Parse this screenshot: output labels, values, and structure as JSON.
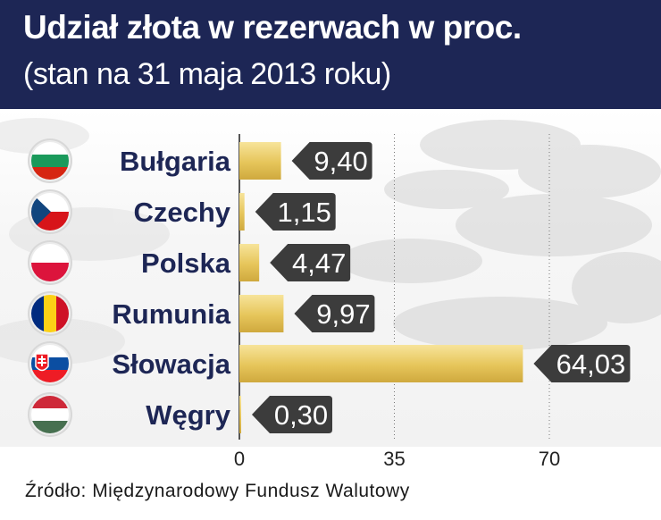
{
  "header": {
    "title": "Udział złota w rezerwach w proc.",
    "subtitle": "(stan na 31 maja 2013 roku)"
  },
  "source": "Źródło: Międzynarodowy Fundusz Walutowy",
  "colors": {
    "header_bg": "#1d2655",
    "bar_gold": "#e6c55a",
    "label_box": "#3c3c3c",
    "country_text": "#1d2655"
  },
  "chart_data": {
    "type": "bar",
    "orientation": "horizontal",
    "title": "Udział złota w rezerwach w proc.",
    "subtitle": "(stan na 31 maja 2013 roku)",
    "categories": [
      "Bułgaria",
      "Czechy",
      "Polska",
      "Rumunia",
      "Słowacja",
      "Węgry"
    ],
    "values": [
      9.4,
      1.15,
      4.47,
      9.97,
      64.03,
      0.3
    ],
    "value_labels": [
      "9,40",
      "1,15",
      "4,47",
      "9,97",
      "64,03",
      "0,30"
    ],
    "flags": [
      {
        "name": "bulgaria-flag-icon",
        "stripes": [
          "#ffffff",
          "#1a9a5b",
          "#d62612"
        ],
        "dir": "h"
      },
      {
        "name": "czech-flag-icon",
        "stripes": [
          "#ffffff",
          "#d7141a"
        ],
        "dir": "h",
        "triangle": "#11457e"
      },
      {
        "name": "poland-flag-icon",
        "stripes": [
          "#ffffff",
          "#dc143c"
        ],
        "dir": "h"
      },
      {
        "name": "romania-flag-icon",
        "stripes": [
          "#002b7f",
          "#fcd116",
          "#ce1126"
        ],
        "dir": "v"
      },
      {
        "name": "slovakia-flag-icon",
        "stripes": [
          "#ffffff",
          "#0b4ea2",
          "#ee1c25"
        ],
        "dir": "h",
        "emblem": true
      },
      {
        "name": "hungary-flag-icon",
        "stripes": [
          "#ce2939",
          "#ffffff",
          "#477050"
        ],
        "dir": "h"
      }
    ],
    "xlim": [
      0,
      70
    ],
    "xticks": [
      0,
      35,
      70
    ],
    "xtick_labels": [
      "0",
      "35",
      "70"
    ],
    "grid": "vertical dotted"
  }
}
